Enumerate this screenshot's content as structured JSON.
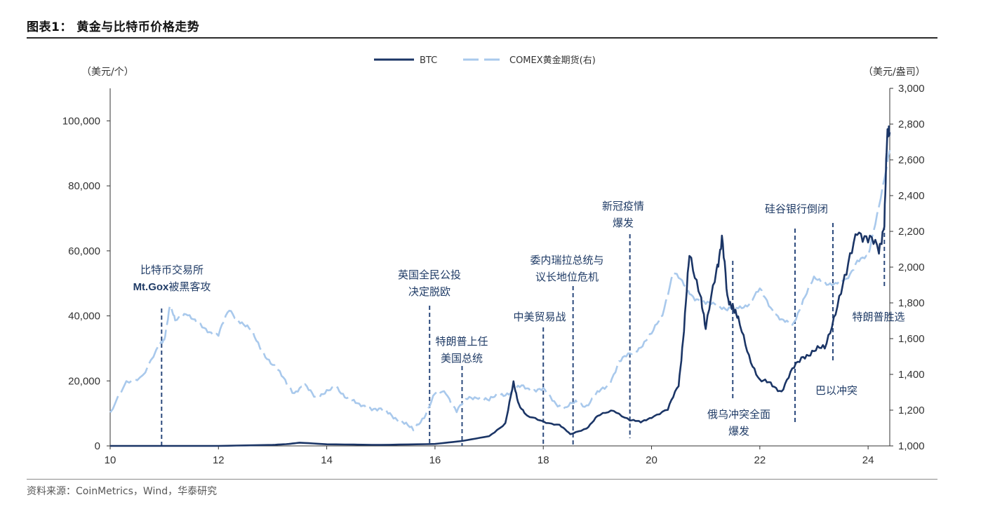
{
  "title": "图表1：  黄金与比特币价格走势",
  "source": "资料来源：CoinMetrics，Wind，华泰研究",
  "chart_data": {
    "type": "line",
    "left_unit": "（美元/个）",
    "right_unit": "（美元/盎司）",
    "xlim": [
      10,
      24.4
    ],
    "ylim_left": [
      0,
      110000
    ],
    "ylim_right": [
      1000,
      3000
    ],
    "x_ticks": [
      "10",
      "12",
      "14",
      "16",
      "18",
      "20",
      "22",
      "24"
    ],
    "left_ticks": [
      "0",
      "20,000",
      "40,000",
      "60,000",
      "80,000",
      "100,000"
    ],
    "right_ticks": [
      "1,000",
      "1,200",
      "1,400",
      "1,600",
      "1,800",
      "2,000",
      "2,200",
      "2,400",
      "2,600",
      "2,800",
      "3,000"
    ],
    "colors": {
      "btc": "#1b3566",
      "gold": "#a9c9ec",
      "event": "#2c4a7d"
    },
    "series": [
      {
        "name": "BTC",
        "axis": "left",
        "style": "solid",
        "x": [
          10.0,
          11.0,
          12.0,
          13.0,
          13.3,
          13.5,
          14.0,
          15.0,
          16.0,
          16.5,
          17.0,
          17.3,
          17.45,
          17.55,
          17.7,
          18.0,
          18.3,
          18.5,
          18.8,
          19.0,
          19.3,
          19.6,
          19.8,
          20.0,
          20.3,
          20.5,
          20.6,
          20.7,
          20.9,
          21.0,
          21.2,
          21.3,
          21.4,
          21.5,
          21.6,
          21.8,
          22.0,
          22.2,
          22.4,
          22.6,
          22.8,
          23.0,
          23.2,
          23.4,
          23.6,
          23.8,
          24.0,
          24.2,
          24.3,
          24.35,
          24.4
        ],
        "y": [
          0,
          0,
          0,
          300,
          600,
          1000,
          500,
          300,
          600,
          1500,
          3000,
          7000,
          19000,
          13000,
          9000,
          7500,
          6500,
          3500,
          5500,
          9000,
          11000,
          8000,
          7200,
          9000,
          11000,
          19000,
          36000,
          58000,
          48000,
          35000,
          55000,
          64000,
          45000,
          44000,
          38000,
          28000,
          20000,
          19000,
          17000,
          23000,
          28000,
          29000,
          30000,
          42000,
          52000,
          68000,
          63000,
          60000,
          70000,
          92000,
          100000
        ]
      },
      {
        "name": "COMEX黄金期货(右)",
        "axis": "right",
        "style": "dashed",
        "x": [
          10.0,
          10.3,
          10.6,
          10.9,
          11.0,
          11.1,
          11.2,
          11.4,
          11.6,
          11.8,
          12.0,
          12.2,
          12.4,
          12.6,
          12.8,
          13.0,
          13.2,
          13.4,
          13.6,
          13.8,
          14.0,
          14.2,
          14.4,
          14.6,
          14.8,
          15.0,
          15.2,
          15.4,
          15.6,
          15.8,
          16.0,
          16.2,
          16.4,
          16.6,
          16.8,
          17.0,
          17.2,
          17.4,
          17.6,
          17.8,
          18.0,
          18.2,
          18.4,
          18.6,
          18.8,
          19.0,
          19.2,
          19.4,
          19.6,
          19.8,
          20.0,
          20.2,
          20.4,
          20.6,
          20.8,
          21.0,
          21.2,
          21.4,
          21.6,
          21.8,
          22.0,
          22.2,
          22.4,
          22.6,
          22.8,
          23.0,
          23.2,
          23.4,
          23.6,
          23.8,
          24.0,
          24.2,
          24.4
        ],
        "y": [
          1180,
          1350,
          1400,
          1550,
          1600,
          1780,
          1700,
          1750,
          1680,
          1650,
          1620,
          1760,
          1700,
          1640,
          1540,
          1450,
          1380,
          1300,
          1330,
          1280,
          1300,
          1320,
          1270,
          1220,
          1220,
          1200,
          1170,
          1140,
          1080,
          1170,
          1290,
          1300,
          1200,
          1260,
          1280,
          1250,
          1290,
          1300,
          1330,
          1320,
          1310,
          1250,
          1210,
          1240,
          1230,
          1290,
          1340,
          1470,
          1510,
          1560,
          1620,
          1740,
          1970,
          1900,
          1830,
          1790,
          1800,
          1760,
          1770,
          1800,
          1870,
          1780,
          1700,
          1670,
          1820,
          1930,
          1920,
          1900,
          1930,
          2040,
          2050,
          2350,
          2650
        ]
      }
    ],
    "annotations": [
      {
        "x": 10.95,
        "lines": [
          "比特币交易所",
          "Mt.Gox被黑客攻"
        ]
      },
      {
        "x": 15.9,
        "lines": [
          "英国全民公投",
          "决定脱欧"
        ]
      },
      {
        "x": 16.5,
        "lines": [
          "特朗普上任",
          "美国总统"
        ]
      },
      {
        "x": 18.0,
        "lines": [
          "中美贸易战"
        ]
      },
      {
        "x": 18.55,
        "lines": [
          "委内瑞拉总统与",
          "议长地位危机"
        ]
      },
      {
        "x": 19.6,
        "lines": [
          "新冠疫情",
          "爆发"
        ]
      },
      {
        "x": 21.5,
        "lines": [
          "俄乌冲突全面",
          "爆发"
        ]
      },
      {
        "x": 22.65,
        "lines": [
          "硅谷银行倒闭"
        ]
      },
      {
        "x": 23.35,
        "lines": [
          "巴以冲突"
        ]
      },
      {
        "x": 24.3,
        "lines": [
          "特朗普胜选"
        ]
      }
    ]
  }
}
